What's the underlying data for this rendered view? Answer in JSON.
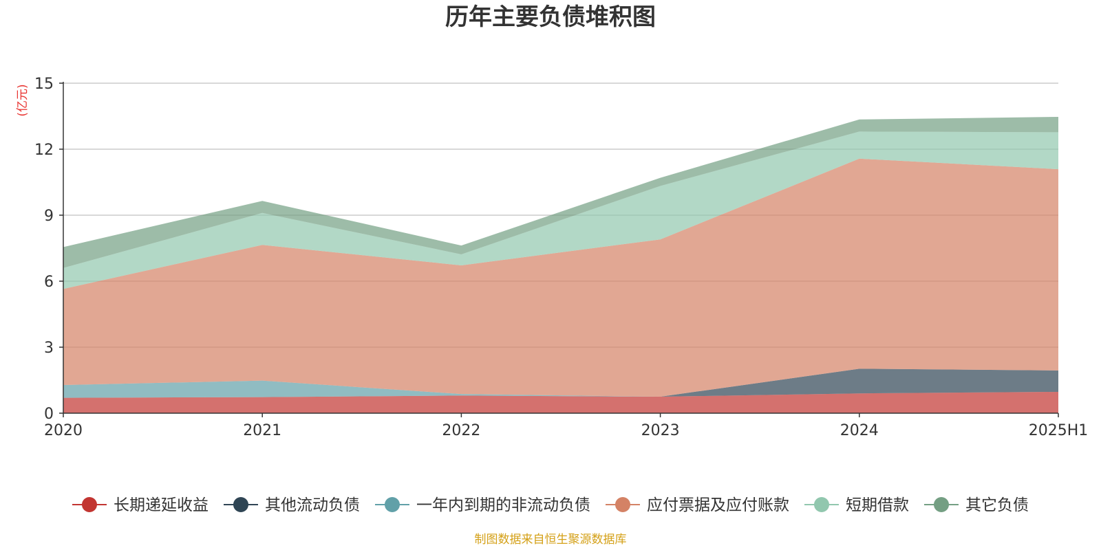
{
  "chart_data": {
    "type": "area",
    "stacked": true,
    "title": "历年主要负债堆积图",
    "ylabel": "(亿元)",
    "categories": [
      "2020",
      "2021",
      "2022",
      "2023",
      "2024",
      "2025H1"
    ],
    "ylim": [
      0,
      15
    ],
    "yticks": [
      0,
      3,
      6,
      9,
      12,
      15
    ],
    "grid": true,
    "legend_position": "bottom",
    "series": [
      {
        "name": "长期递延收益",
        "color": "#c23531",
        "values": [
          0.7,
          0.73,
          0.8,
          0.75,
          0.9,
          0.97
        ]
      },
      {
        "name": "其他流动负债",
        "color": "#2f4554",
        "values": [
          0.0,
          0.0,
          0.0,
          0.0,
          1.12,
          0.97
        ]
      },
      {
        "name": "一年内到期的非流动负债",
        "color": "#61a0a8",
        "values": [
          0.58,
          0.75,
          0.07,
          0.0,
          0.0,
          0.0
        ]
      },
      {
        "name": "应付票据及应付账款",
        "color": "#d48265",
        "values": [
          4.37,
          6.17,
          5.85,
          7.15,
          9.55,
          9.15
        ]
      },
      {
        "name": "短期借款",
        "color": "#91c7ae",
        "values": [
          0.95,
          1.45,
          0.5,
          2.43,
          1.23,
          1.68
        ]
      },
      {
        "name": "其它负债",
        "color": "#749f83",
        "values": [
          0.95,
          0.55,
          0.4,
          0.37,
          0.55,
          0.7
        ]
      }
    ]
  },
  "footer": {
    "source": "制图数据来自恒生聚源数据库"
  }
}
